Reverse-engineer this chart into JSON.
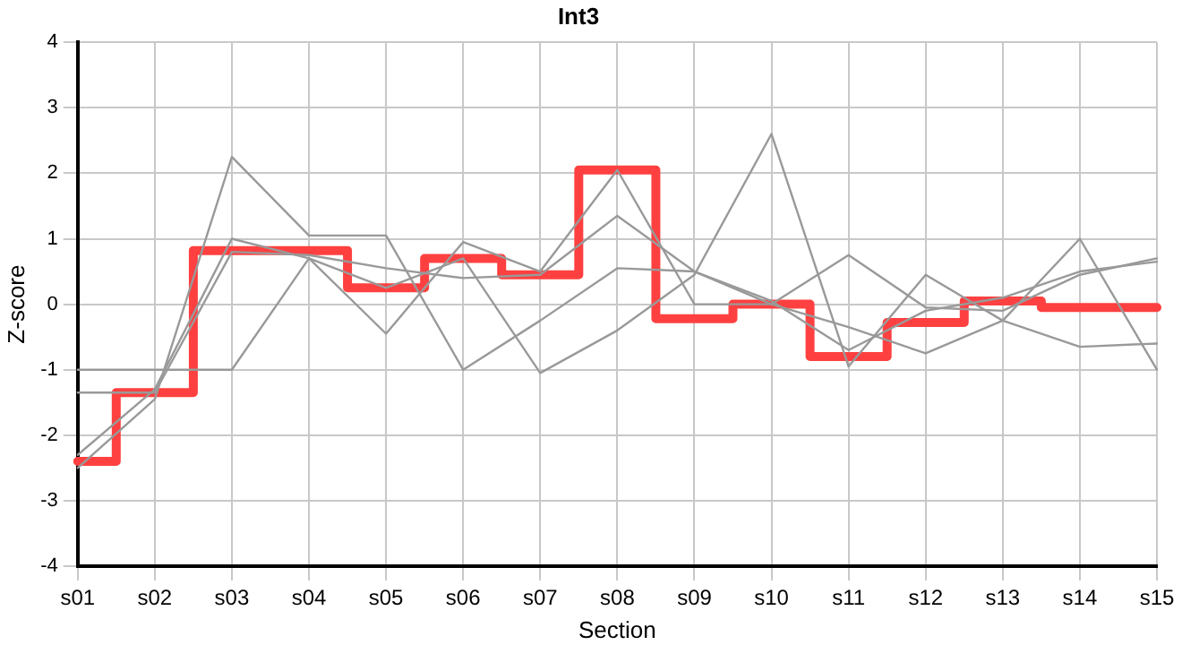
{
  "chart_data": {
    "type": "line",
    "title": "Int3",
    "xlabel": "Section",
    "ylabel": "Z-score",
    "categories": [
      "s01",
      "s02",
      "s03",
      "s04",
      "s05",
      "s06",
      "s07",
      "s08",
      "s09",
      "s10",
      "s11",
      "s12",
      "s13",
      "s14",
      "s15"
    ],
    "ylim": [
      -4,
      4
    ],
    "yticks": [
      -4,
      -3,
      -2,
      -1,
      0,
      1,
      2,
      3,
      4
    ],
    "grid": true,
    "legend": false,
    "marker": "none",
    "series": [
      {
        "color": "#999999",
        "values": [
          -2.5,
          -1.45,
          2.25,
          1.05,
          1.05,
          -1.0,
          -0.25,
          0.55,
          0.5,
          0.05,
          -0.7,
          -0.1,
          0.1,
          0.5,
          0.65
        ]
      },
      {
        "color": "#999999",
        "values": [
          -1.0,
          -1.0,
          -1.0,
          0.7,
          -0.45,
          0.95,
          0.5,
          2.05,
          0.0,
          0.0,
          -0.35,
          -0.75,
          -0.25,
          1.0,
          -1.0
        ]
      },
      {
        "color": "#999999",
        "values": [
          -2.3,
          -1.3,
          1.0,
          0.7,
          0.25,
          0.7,
          -1.05,
          -0.4,
          0.45,
          2.6,
          -0.95,
          0.45,
          -0.25,
          -0.65,
          -0.6
        ]
      },
      {
        "color": "#999999",
        "values": [
          -1.35,
          -1.35,
          0.8,
          0.75,
          0.55,
          0.4,
          0.45,
          1.35,
          0.5,
          0.0,
          0.75,
          -0.05,
          -0.1,
          0.45,
          0.7
        ]
      },
      {
        "type": "step",
        "color": "#ff4040",
        "values": [
          -2.4,
          -1.35,
          0.82,
          0.82,
          0.25,
          0.7,
          0.45,
          2.05,
          -0.22,
          0.0,
          -0.8,
          -0.28,
          0.05,
          -0.05,
          -0.05
        ]
      }
    ]
  }
}
